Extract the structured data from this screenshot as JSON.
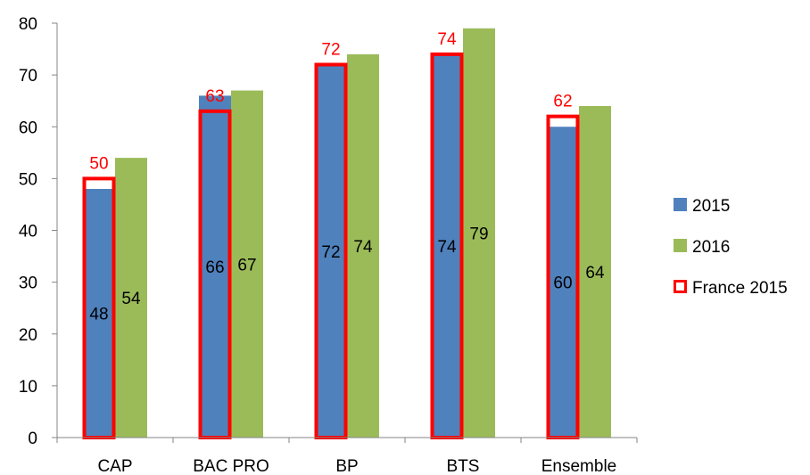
{
  "chart_data": {
    "type": "bar",
    "categories": [
      "CAP",
      "BAC PRO",
      "BP",
      "BTS",
      "Ensemble"
    ],
    "series": [
      {
        "name": "2015",
        "values": [
          48,
          66,
          72,
          74,
          60
        ],
        "color": "#4f81bd"
      },
      {
        "name": "2016",
        "values": [
          54,
          67,
          74,
          79,
          64
        ],
        "color": "#9bbb59"
      },
      {
        "name": "France 2015",
        "values": [
          50,
          63,
          72,
          74,
          62
        ],
        "color": "#ff0000",
        "style": "outline"
      }
    ],
    "ylim": [
      0,
      80
    ],
    "yticks": [
      0,
      10,
      20,
      30,
      40,
      50,
      60,
      70,
      80
    ],
    "title": "",
    "xlabel": "",
    "ylabel": "",
    "grid": false,
    "legend_position": "right"
  }
}
